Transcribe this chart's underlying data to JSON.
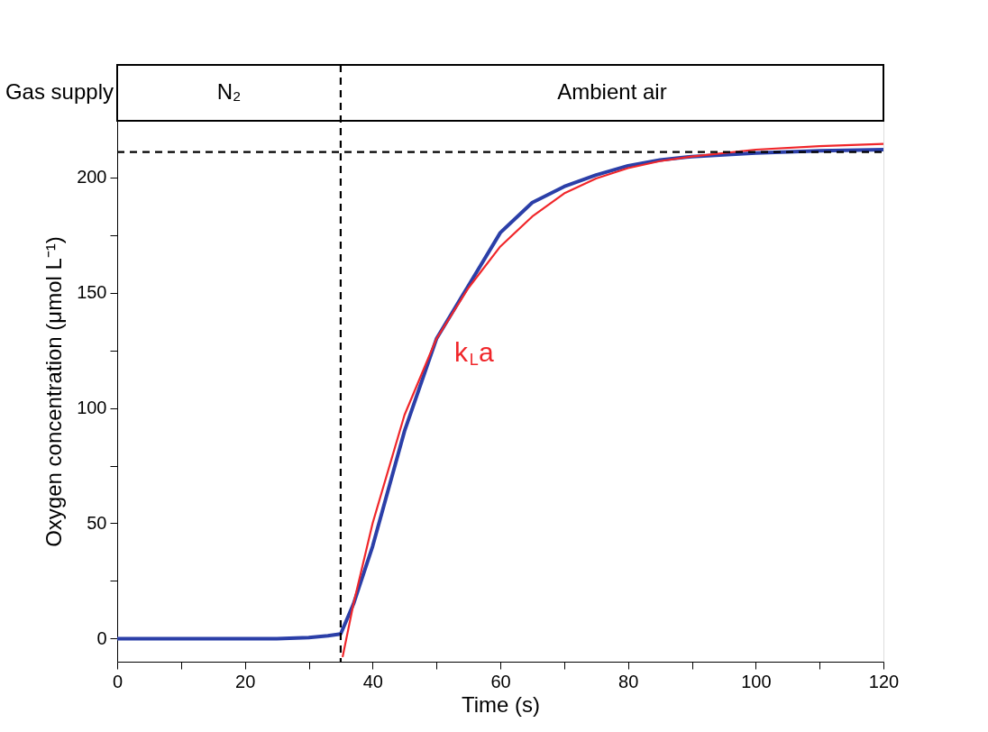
{
  "chart_data": {
    "type": "line",
    "xlabel": "Time (s)",
    "ylabel": "Oxygen concentration (μmol L⁻¹)",
    "xlim": [
      0,
      120
    ],
    "ylim": [
      -10,
      224.5
    ],
    "xticks": [
      0,
      {
        "value": 10,
        "label": null
      },
      20,
      {
        "value": 30,
        "label": null
      },
      40,
      {
        "value": 50,
        "label": null
      },
      60,
      {
        "value": 70,
        "label": null
      },
      80,
      {
        "value": 90,
        "label": null
      },
      100,
      {
        "value": 110,
        "label": null
      },
      120
    ],
    "yticks": [
      0,
      {
        "value": 25,
        "label": null
      },
      50,
      {
        "value": 75,
        "label": null
      },
      100,
      {
        "value": 125,
        "label": null
      },
      150,
      {
        "value": 175,
        "label": null
      },
      200
    ],
    "grid": false,
    "marker": "none",
    "series": [
      {
        "color": "#2b3fa8",
        "x": [
          0,
          10,
          20,
          25,
          30,
          33,
          35,
          37,
          40,
          45,
          50,
          55,
          60,
          65,
          70,
          75,
          80,
          85,
          90,
          100,
          110,
          120
        ],
        "values": [
          0,
          0,
          0,
          0,
          0.5,
          1.2,
          2,
          15,
          40,
          90,
          130,
          153,
          176,
          189,
          196,
          201,
          205,
          207.5,
          209,
          210.5,
          211.5,
          212
        ]
      },
      {
        "color": "#f0262a",
        "x": [
          35.3,
          37,
          40,
          45,
          50,
          55,
          60,
          65,
          70,
          75,
          80,
          85,
          90,
          100,
          110,
          120
        ],
        "values": [
          -8,
          15,
          50,
          97,
          130,
          152,
          170,
          183,
          193,
          199.5,
          204,
          207,
          209,
          212,
          213.5,
          214.5
        ]
      }
    ],
    "ref_lines": [
      {
        "axis": "x",
        "value": 35,
        "line_style": "dashed",
        "color": "#000000"
      },
      {
        "axis": "y",
        "value": 211,
        "line_style": "dashed",
        "color": "#000000"
      }
    ],
    "annotations": [
      "Gas supply",
      "N₂",
      "Ambient air",
      "k$_{L}$a"
    ]
  }
}
